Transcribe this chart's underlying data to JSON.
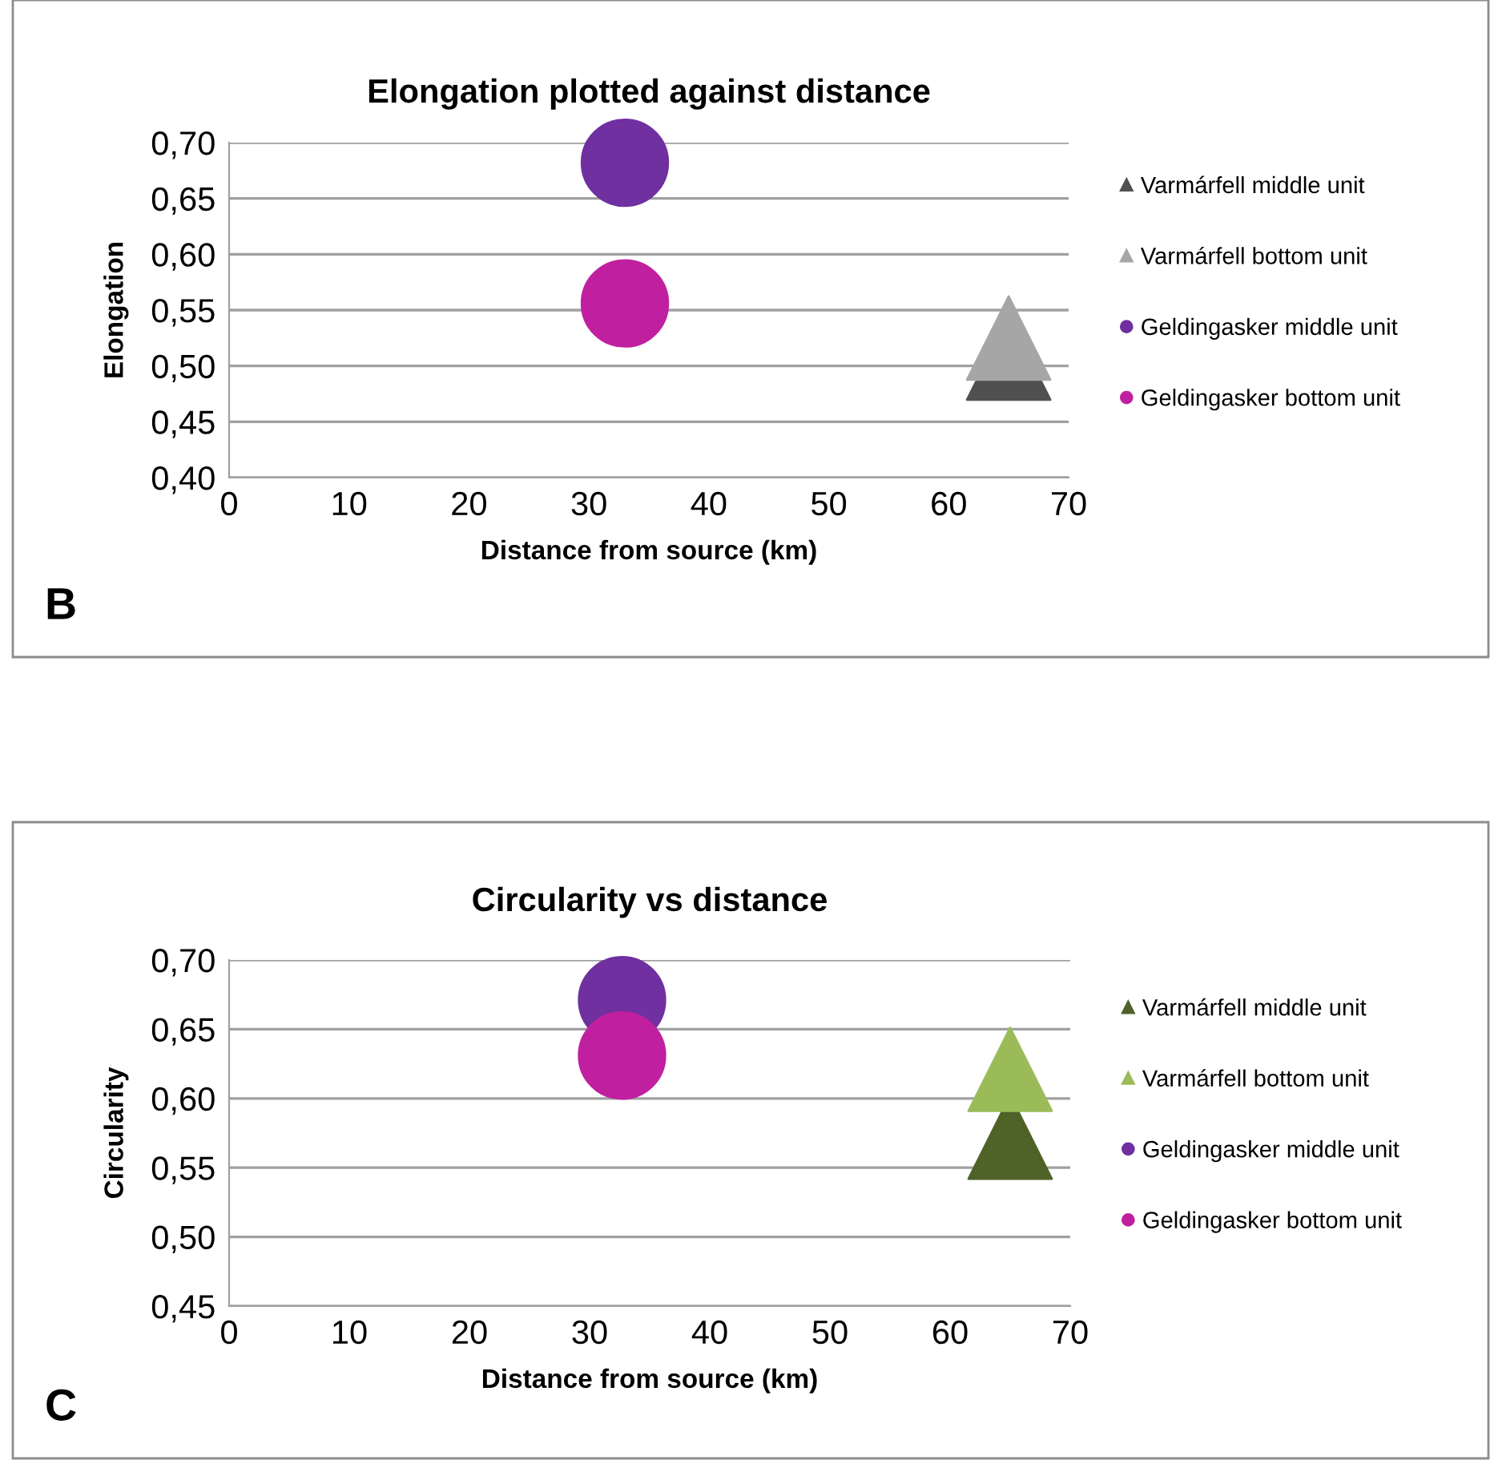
{
  "chart_data": [
    {
      "type": "scatter",
      "title": "Elongation plotted against distance",
      "xlabel": "Distance from source (km)",
      "ylabel": "Elongation",
      "annotations": [
        "B"
      ],
      "xlim": [
        0,
        70
      ],
      "xticks": [
        0,
        10,
        20,
        30,
        40,
        50,
        60,
        70
      ],
      "ylim": [
        0.4,
        0.7
      ],
      "yticks": [
        {
          "value": 0.4,
          "label": "0,40"
        },
        {
          "value": 0.45,
          "label": "0,45"
        },
        {
          "value": 0.5,
          "label": "0,50"
        },
        {
          "value": 0.55,
          "label": "0,55"
        },
        {
          "value": 0.6,
          "label": "0,60"
        },
        {
          "value": 0.65,
          "label": "0,65"
        },
        {
          "value": 0.7,
          "label": "0,70"
        }
      ],
      "grid": "y",
      "legend": "right",
      "series": [
        {
          "name": "Varmárfell middle unit",
          "color": "#505050",
          "marker": "triangle",
          "x": [
            65
          ],
          "values": [
            0.507
          ]
        },
        {
          "name": "Varmárfell bottom unit",
          "color": "#a6a6a6",
          "marker": "triangle",
          "x": [
            65
          ],
          "values": [
            0.525
          ]
        },
        {
          "name": "Geldingasker middle unit",
          "color": "#7030a0",
          "marker": "circle",
          "x": [
            33
          ],
          "values": [
            0.682
          ]
        },
        {
          "name": "Geldingasker bottom unit",
          "color": "#c020a0",
          "marker": "circle",
          "x": [
            33
          ],
          "values": [
            0.556
          ]
        }
      ]
    },
    {
      "type": "scatter",
      "title": "Circularity vs distance",
      "xlabel": "Distance from source (km)",
      "ylabel": "Circularity",
      "annotations": [
        "C"
      ],
      "xlim": [
        0,
        70
      ],
      "xticks": [
        0,
        10,
        20,
        30,
        40,
        50,
        60,
        70
      ],
      "ylim": [
        0.45,
        0.7
      ],
      "yticks": [
        {
          "value": 0.45,
          "label": "0,45"
        },
        {
          "value": 0.5,
          "label": "0,50"
        },
        {
          "value": 0.55,
          "label": "0,55"
        },
        {
          "value": 0.6,
          "label": "0,60"
        },
        {
          "value": 0.65,
          "label": "0,65"
        },
        {
          "value": 0.7,
          "label": "0,70"
        }
      ],
      "grid": "y",
      "legend": "right",
      "series": [
        {
          "name": "Varmárfell middle unit",
          "color": "#4f6228",
          "marker": "triangle",
          "x": [
            65
          ],
          "values": [
            0.572
          ]
        },
        {
          "name": "Varmárfell bottom unit",
          "color": "#9bbb59",
          "marker": "triangle",
          "x": [
            65
          ],
          "values": [
            0.621
          ]
        },
        {
          "name": "Geldingasker middle unit",
          "color": "#7030a0",
          "marker": "circle",
          "x": [
            32.7
          ],
          "values": [
            0.671
          ]
        },
        {
          "name": "Geldingasker bottom unit",
          "color": "#c020a0",
          "marker": "circle",
          "x": [
            32.7
          ],
          "values": [
            0.631
          ]
        }
      ]
    }
  ]
}
